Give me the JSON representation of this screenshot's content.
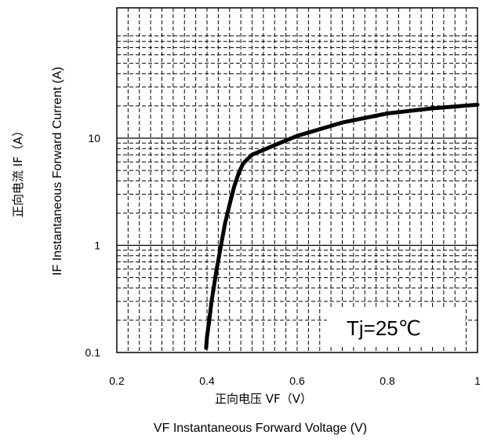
{
  "chart_data": {
    "type": "line",
    "x_scale": "linear",
    "y_scale": "log",
    "xlim": [
      0.2,
      1.0
    ],
    "ylim": [
      0.1,
      50
    ],
    "x_ticks": [
      0.2,
      0.4,
      0.6,
      0.8,
      1.0
    ],
    "x_tick_labels": [
      "0.2",
      "0.4",
      "0.6",
      "0.8",
      "1"
    ],
    "y_ticks": [
      0.1,
      1,
      10
    ],
    "y_tick_labels": [
      "0.1",
      "1",
      "10"
    ],
    "xlabel_cn": "正向电压  VF（V）",
    "xlabel_en": "VF  Instantaneous Forward Voltage (V)",
    "ylabel_cn": "正向电流  IF（A）",
    "ylabel_en": "IF Instantaneous Forward Current (A)",
    "annotation": "Tj=25℃",
    "grid": true,
    "series": [
      {
        "x": [
          0.398,
          0.4,
          0.405,
          0.41,
          0.42,
          0.43,
          0.44,
          0.45,
          0.46,
          0.47,
          0.48,
          0.5,
          0.55,
          0.6,
          0.7,
          0.8,
          0.9,
          1.0
        ],
        "y": [
          0.11,
          0.14,
          0.2,
          0.3,
          0.55,
          0.95,
          1.6,
          2.4,
          3.5,
          4.7,
          5.8,
          7.0,
          8.6,
          10.5,
          14.0,
          17.0,
          19.0,
          20.5
        ]
      }
    ]
  }
}
